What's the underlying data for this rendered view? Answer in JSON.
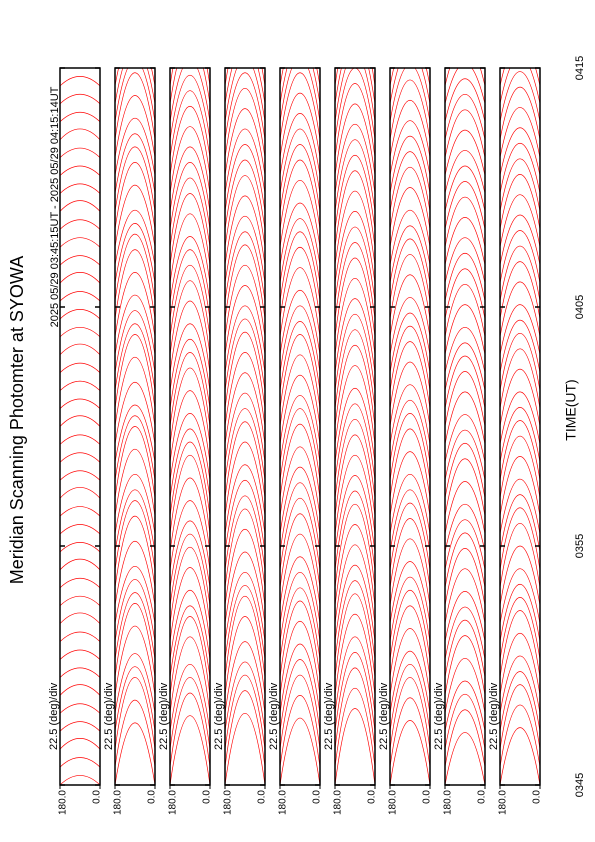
{
  "chart_data": {
    "type": "scan",
    "title": "Meridian Scanning Photomter at SYOWA",
    "subtitle": "2025 05/29 03:45:15UT - 2025 05/29 04:15:14UT",
    "xlabel": "TIME(UT)",
    "xlim": [
      0,
      30
    ],
    "xticks": [
      {
        "value": 0,
        "label": "0345"
      },
      {
        "value": 10,
        "label": "0355"
      },
      {
        "value": 20,
        "label": "0405"
      },
      {
        "value": 30,
        "label": "0415"
      }
    ],
    "x": [
      0,
      0.75,
      1.5,
      2.25,
      3,
      3.75,
      4.5,
      5.25,
      6,
      6.75,
      7.5,
      8.25,
      9,
      9.75,
      10.5,
      11.25,
      12,
      12.75,
      13.5,
      14.25,
      15,
      15.75,
      16.5,
      17.25,
      18,
      18.75,
      19.5,
      20.25,
      21,
      21.75,
      22.5,
      23.25,
      24,
      24.75,
      25.5,
      26.25,
      27,
      27.75,
      28.5,
      29.25
    ],
    "panels": [
      {
        "scale_label": "22.5 (deg)/div",
        "color": "#ff0000",
        "ylim": [
          0,
          180
        ],
        "yticks": [
          {
            "value": 180,
            "label": "180.0"
          },
          {
            "value": 0,
            "label": "0.0"
          }
        ],
        "values": [
          0.4,
          0.4,
          0.45,
          0.4,
          0.4,
          0.45,
          0.4,
          0.4,
          0.4,
          0.45,
          0.4,
          0.4,
          0.45,
          0.4,
          0.4,
          0.4,
          0.45,
          0.4,
          0.4,
          0.4,
          0.45,
          0.4,
          0.4,
          0.4,
          0.45,
          0.4,
          0.4,
          0.4,
          0.45,
          0.4,
          0.4,
          0.4,
          0.45,
          0.4,
          0.4,
          0.4,
          0.45,
          0.4,
          0.4,
          0.4
        ]
      },
      {
        "scale_label": "22.5 (deg)/div",
        "color": "#ff0000",
        "ylim": [
          0,
          180
        ],
        "yticks": [
          {
            "value": 180,
            "label": "180.0"
          },
          {
            "value": 0,
            "label": "0.0"
          }
        ],
        "values": [
          2.6,
          2.8,
          3.0,
          2.7,
          2.5,
          2.9,
          3.1,
          2.8,
          2.6,
          2.4,
          2.7,
          3.0,
          2.9,
          2.6,
          2.5,
          2.8,
          3.0,
          2.7,
          2.4,
          2.6,
          2.9,
          3.1,
          2.8,
          2.6,
          2.5,
          2.7,
          2.9,
          2.8,
          2.5,
          2.3,
          2.6,
          2.8,
          2.7,
          2.5,
          2.4,
          2.6,
          2.8,
          2.6,
          2.4,
          2.3
        ]
      },
      {
        "scale_label": "22.5 (deg)/div",
        "color": "#ff0000",
        "ylim": [
          0,
          180
        ],
        "yticks": [
          {
            "value": 180,
            "label": "180.0"
          },
          {
            "value": 0,
            "label": "0.0"
          }
        ],
        "values": [
          2.9,
          3.1,
          3.0,
          2.8,
          3.2,
          3.3,
          3.0,
          2.9,
          3.1,
          3.2,
          3.0,
          2.8,
          2.9,
          3.1,
          3.3,
          3.1,
          2.9,
          2.8,
          3.0,
          3.2,
          3.1,
          2.9,
          2.8,
          3.0,
          3.1,
          3.0,
          2.9,
          2.7,
          2.9,
          3.0,
          2.9,
          2.8,
          2.7,
          2.8,
          2.9,
          2.8,
          2.7,
          2.6,
          2.7,
          2.8
        ]
      },
      {
        "scale_label": "22.5 (deg)/div",
        "color": "#ff0000",
        "ylim": [
          0,
          180
        ],
        "yticks": [
          {
            "value": 180,
            "label": "180.0"
          },
          {
            "value": 0,
            "label": "0.0"
          }
        ],
        "values": [
          3.0,
          3.2,
          3.1,
          2.9,
          3.0,
          3.3,
          3.4,
          3.1,
          2.9,
          3.0,
          3.2,
          3.3,
          3.1,
          3.0,
          2.9,
          3.1,
          3.2,
          3.0,
          2.9,
          3.0,
          3.1,
          3.2,
          3.0,
          2.8,
          2.9,
          3.0,
          3.1,
          2.9,
          2.8,
          2.9,
          3.0,
          2.9,
          2.8,
          2.7,
          2.8,
          2.9,
          2.8,
          2.7,
          2.6,
          2.7
        ]
      },
      {
        "scale_label": "22.5 (deg)/div",
        "color": "#ff0000",
        "ylim": [
          0,
          180
        ],
        "yticks": [
          {
            "value": 180,
            "label": "180.0"
          },
          {
            "value": 0,
            "label": "0.0"
          }
        ],
        "values": [
          2.8,
          3.0,
          3.1,
          3.0,
          2.9,
          3.1,
          3.2,
          3.0,
          2.9,
          2.8,
          3.0,
          3.1,
          3.0,
          2.9,
          2.8,
          2.9,
          3.1,
          3.0,
          2.8,
          2.9,
          3.0,
          3.1,
          2.9,
          2.8,
          2.7,
          2.9,
          3.0,
          2.9,
          2.7,
          2.6,
          2.8,
          2.9,
          2.8,
          2.7,
          2.6,
          2.7,
          2.8,
          2.7,
          2.6,
          2.5
        ]
      },
      {
        "scale_label": "22.5 (deg)/div",
        "color": "#ff0000",
        "ylim": [
          0,
          180
        ],
        "yticks": [
          {
            "value": 180,
            "label": "180.0"
          },
          {
            "value": 0,
            "label": "0.0"
          }
        ],
        "values": [
          3.2,
          3.3,
          3.4,
          3.3,
          3.2,
          3.4,
          3.5,
          3.3,
          3.2,
          3.3,
          3.4,
          3.5,
          3.3,
          3.2,
          3.3,
          3.4,
          3.3,
          3.2,
          3.1,
          3.3,
          3.4,
          3.3,
          3.2,
          3.1,
          3.2,
          3.3,
          3.2,
          3.1,
          3.0,
          3.1,
          3.2,
          3.1,
          3.0,
          2.9,
          3.0,
          3.1,
          3.0,
          2.9,
          2.8,
          2.9
        ]
      },
      {
        "scale_label": "22.5 (deg)/div",
        "color": "#ff0000",
        "ylim": [
          0,
          180
        ],
        "yticks": [
          {
            "value": 180,
            "label": "180.0"
          },
          {
            "value": 0,
            "label": "0.0"
          }
        ],
        "values": [
          2.7,
          2.9,
          3.0,
          2.8,
          2.6,
          2.8,
          3.0,
          2.9,
          2.7,
          2.6,
          2.8,
          2.9,
          2.8,
          2.6,
          2.5,
          2.7,
          2.9,
          2.8,
          2.6,
          2.5,
          2.7,
          2.8,
          2.7,
          2.5,
          2.4,
          2.6,
          2.7,
          2.6,
          2.4,
          2.3,
          2.5,
          2.6,
          2.5,
          2.4,
          2.3,
          2.4,
          2.5,
          2.4,
          2.3,
          2.2
        ]
      },
      {
        "scale_label": "22.5 (deg)/div",
        "color": "#ff0000",
        "ylim": [
          0,
          180
        ],
        "yticks": [
          {
            "value": 180,
            "label": "180.0"
          },
          {
            "value": 0,
            "label": "0.0"
          }
        ],
        "values": [
          2.2,
          2.4,
          2.3,
          2.1,
          2.3,
          2.5,
          2.4,
          2.2,
          2.1,
          2.3,
          2.4,
          2.3,
          2.1,
          2.0,
          2.2,
          2.4,
          2.3,
          2.1,
          2.0,
          2.2,
          2.3,
          2.2,
          2.0,
          1.9,
          2.1,
          2.2,
          2.1,
          2.0,
          1.9,
          2.0,
          2.1,
          2.0,
          1.9,
          1.8,
          1.9,
          2.0,
          1.9,
          1.8,
          1.7,
          1.8
        ]
      },
      {
        "scale_label": "22.5 (deg)/div",
        "color": "#ff0000",
        "ylim": [
          0,
          180
        ],
        "yticks": [
          {
            "value": 180,
            "label": "180.0"
          },
          {
            "value": 0,
            "label": "0.0"
          }
        ],
        "values": [
          2.4,
          2.6,
          2.7,
          2.5,
          2.4,
          2.6,
          2.8,
          2.6,
          2.4,
          2.3,
          2.5,
          2.7,
          2.6,
          2.4,
          2.3,
          2.5,
          2.6,
          2.5,
          2.3,
          2.2,
          2.4,
          2.5,
          2.4,
          2.2,
          2.1,
          2.3,
          2.4,
          2.3,
          2.2,
          2.1,
          2.2,
          2.3,
          2.2,
          2.1,
          2.0,
          2.1,
          2.2,
          2.1,
          2.0,
          1.9
        ]
      }
    ]
  }
}
